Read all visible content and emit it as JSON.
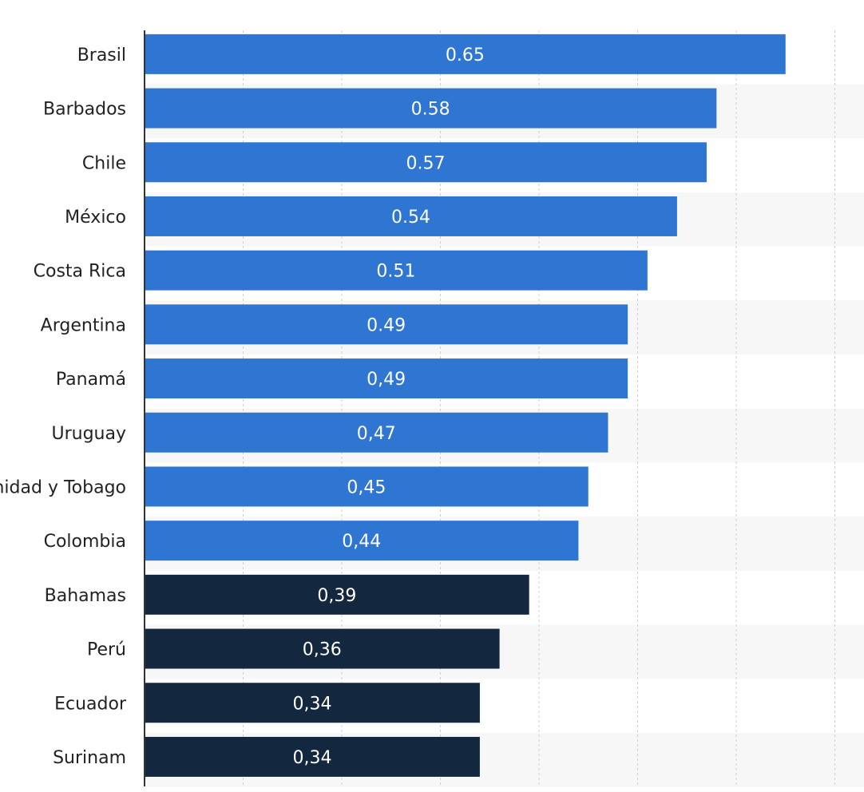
{
  "chart_data": {
    "type": "bar",
    "orientation": "horizontal",
    "categories": [
      "Brasil",
      "Barbados",
      "Chile",
      "México",
      "Costa Rica",
      "Argentina",
      "Panamá",
      "Uruguay",
      "Trinidad y Tobago",
      "Colombia",
      "Bahamas",
      "Perú",
      "Ecuador",
      "Surinam"
    ],
    "values": [
      0.65,
      0.58,
      0.57,
      0.54,
      0.51,
      0.49,
      0.49,
      0.47,
      0.45,
      0.44,
      0.39,
      0.36,
      0.34,
      0.34
    ],
    "value_labels": [
      "0.65",
      "0.58",
      "0.57",
      "0.54",
      "0.51",
      "0.49",
      "0,49",
      "0,47",
      "0,45",
      "0,44",
      "0,39",
      "0,36",
      "0,34",
      "0,34"
    ],
    "bar_colors": [
      "#2f76d2",
      "#2f76d2",
      "#2f76d2",
      "#2f76d2",
      "#2f76d2",
      "#2f76d2",
      "#2f76d2",
      "#2f76d2",
      "#2f76d2",
      "#2f76d2",
      "#13283f",
      "#13283f",
      "#13283f",
      "#13283f"
    ],
    "xlim": [
      0,
      0.7
    ],
    "grid": true,
    "title": "",
    "xlabel": "",
    "ylabel": ""
  },
  "colors": {
    "band": "#f7f7f7",
    "grid": "#cfcfcf",
    "axis": "#333333"
  }
}
